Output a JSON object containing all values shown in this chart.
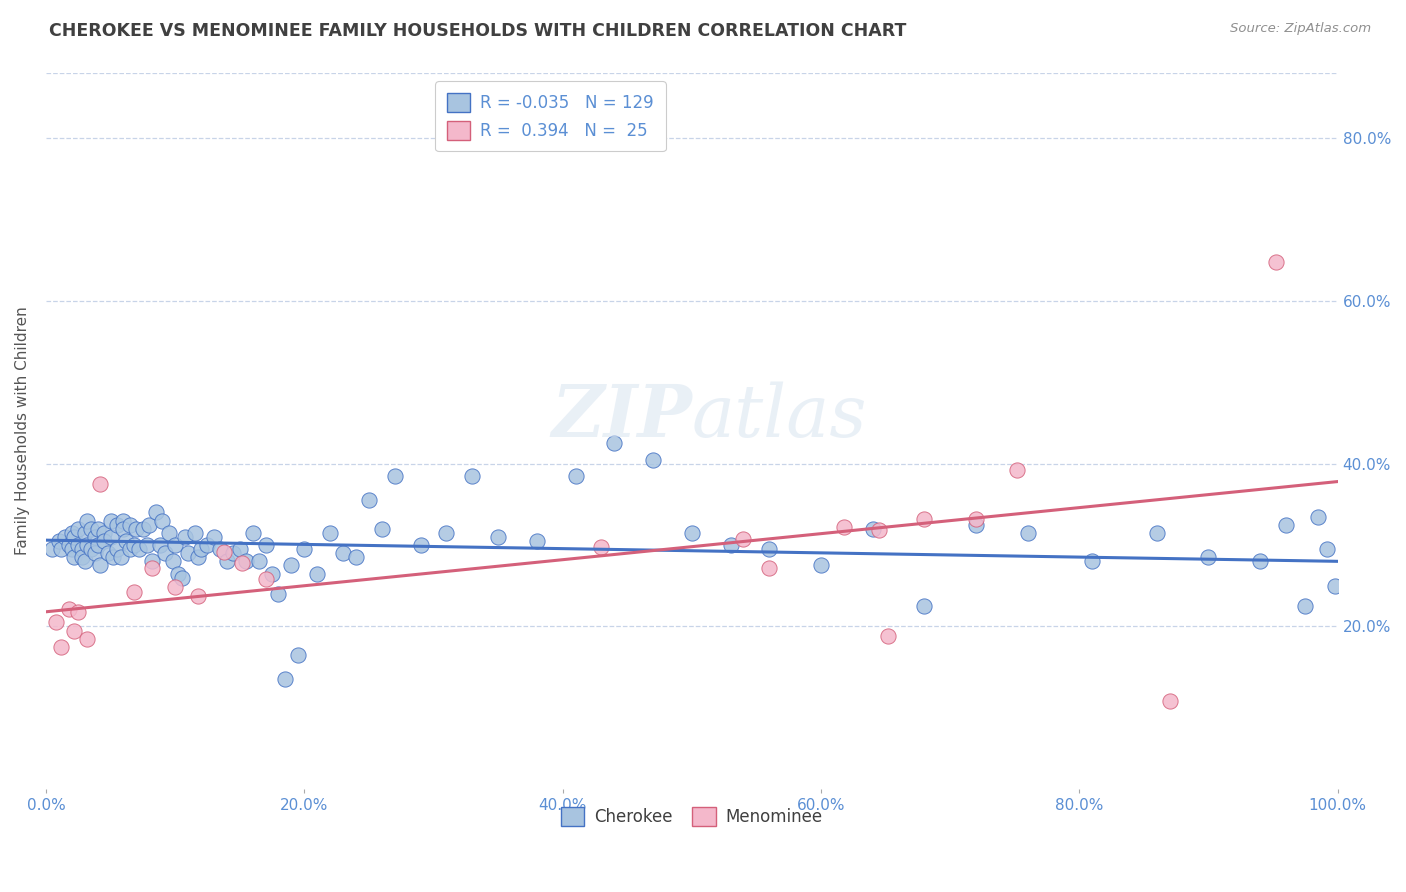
{
  "title": "CHEROKEE VS MENOMINEE FAMILY HOUSEHOLDS WITH CHILDREN CORRELATION CHART",
  "source": "Source: ZipAtlas.com",
  "xlabel_ticks": [
    "0.0%",
    "20.0%",
    "40.0%",
    "60.0%",
    "80.0%",
    "100.0%"
  ],
  "ylabel": "Family Households with Children",
  "cherokee_color": "#a8c4e0",
  "cherokee_line_color": "#4472c4",
  "menominee_color": "#f4b8cb",
  "menominee_line_color": "#d4607a",
  "background_color": "#ffffff",
  "grid_color": "#c8d4e8",
  "title_color": "#404040",
  "source_color": "#909090",
  "cherokee_x": [
    0.005,
    0.01,
    0.012,
    0.015,
    0.018,
    0.02,
    0.02,
    0.022,
    0.022,
    0.025,
    0.025,
    0.028,
    0.028,
    0.03,
    0.03,
    0.032,
    0.032,
    0.035,
    0.035,
    0.038,
    0.038,
    0.04,
    0.04,
    0.042,
    0.045,
    0.045,
    0.048,
    0.05,
    0.05,
    0.052,
    0.055,
    0.055,
    0.058,
    0.06,
    0.06,
    0.062,
    0.065,
    0.065,
    0.068,
    0.07,
    0.072,
    0.075,
    0.078,
    0.08,
    0.082,
    0.085,
    0.088,
    0.09,
    0.092,
    0.095,
    0.098,
    0.1,
    0.102,
    0.105,
    0.108,
    0.11,
    0.115,
    0.118,
    0.12,
    0.125,
    0.13,
    0.135,
    0.14,
    0.145,
    0.15,
    0.155,
    0.16,
    0.165,
    0.17,
    0.175,
    0.18,
    0.185,
    0.19,
    0.195,
    0.2,
    0.21,
    0.22,
    0.23,
    0.24,
    0.25,
    0.26,
    0.27,
    0.29,
    0.31,
    0.33,
    0.35,
    0.38,
    0.41,
    0.44,
    0.47,
    0.5,
    0.53,
    0.56,
    0.6,
    0.64,
    0.68,
    0.72,
    0.76,
    0.81,
    0.86,
    0.9,
    0.94,
    0.96,
    0.975,
    0.985,
    0.992,
    0.998
  ],
  "cherokee_y": [
    0.295,
    0.305,
    0.295,
    0.31,
    0.3,
    0.315,
    0.295,
    0.31,
    0.285,
    0.3,
    0.32,
    0.295,
    0.285,
    0.315,
    0.28,
    0.3,
    0.33,
    0.32,
    0.295,
    0.31,
    0.29,
    0.32,
    0.3,
    0.275,
    0.315,
    0.305,
    0.29,
    0.33,
    0.31,
    0.285,
    0.325,
    0.295,
    0.285,
    0.33,
    0.32,
    0.305,
    0.325,
    0.295,
    0.3,
    0.32,
    0.295,
    0.32,
    0.3,
    0.325,
    0.28,
    0.34,
    0.3,
    0.33,
    0.29,
    0.315,
    0.28,
    0.3,
    0.265,
    0.26,
    0.31,
    0.29,
    0.315,
    0.285,
    0.295,
    0.3,
    0.31,
    0.295,
    0.28,
    0.29,
    0.295,
    0.28,
    0.315,
    0.28,
    0.3,
    0.265,
    0.24,
    0.135,
    0.275,
    0.165,
    0.295,
    0.265,
    0.315,
    0.29,
    0.285,
    0.355,
    0.32,
    0.385,
    0.3,
    0.315,
    0.385,
    0.31,
    0.305,
    0.385,
    0.425,
    0.405,
    0.315,
    0.3,
    0.295,
    0.275,
    0.32,
    0.225,
    0.325,
    0.315,
    0.28,
    0.315,
    0.285,
    0.28,
    0.325,
    0.225,
    0.335,
    0.295,
    0.25
  ],
  "menominee_x": [
    0.008,
    0.012,
    0.018,
    0.022,
    0.025,
    0.032,
    0.042,
    0.068,
    0.082,
    0.1,
    0.118,
    0.138,
    0.152,
    0.17,
    0.43,
    0.54,
    0.56,
    0.618,
    0.645,
    0.652,
    0.68,
    0.72,
    0.752,
    0.87,
    0.952
  ],
  "menominee_y": [
    0.205,
    0.175,
    0.222,
    0.195,
    0.218,
    0.185,
    0.375,
    0.242,
    0.272,
    0.248,
    0.238,
    0.292,
    0.278,
    0.258,
    0.298,
    0.308,
    0.272,
    0.322,
    0.318,
    0.188,
    0.332,
    0.332,
    0.392,
    0.108,
    0.648
  ],
  "xlim": [
    0.0,
    1.0
  ],
  "ylim": [
    0.0,
    0.88
  ],
  "cherokee_trend_x": [
    0.0,
    1.0
  ],
  "cherokee_trend_y": [
    0.306,
    0.28
  ],
  "menominee_trend_x": [
    0.0,
    1.0
  ],
  "menominee_trend_y": [
    0.218,
    0.378
  ],
  "ytick_vals": [
    0.2,
    0.4,
    0.6,
    0.8
  ],
  "ytick_labels": [
    "20.0%",
    "40.0%",
    "60.0%",
    "80.0%"
  ],
  "xtick_vals": [
    0.0,
    0.2,
    0.4,
    0.6,
    0.8,
    1.0
  ]
}
